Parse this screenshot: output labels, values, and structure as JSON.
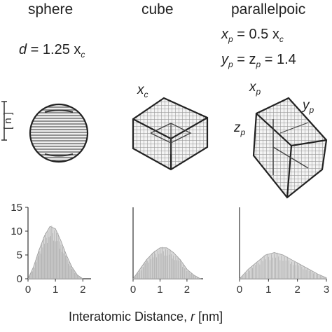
{
  "columns": [
    {
      "title": "sphere",
      "shape": "sphere"
    },
    {
      "title": "cube",
      "shape": "cube"
    },
    {
      "title": "parallelpoic",
      "shape": "parallelepiped"
    }
  ],
  "sphere_eq": {
    "var": "d",
    "rest": " = 1.25 x",
    "sub": "c"
  },
  "para_eq1": {
    "var": "x",
    "var_sub": "p",
    "rest": " = 0.5 x",
    "sub": "c"
  },
  "para_eq2": {
    "y": "y",
    "y_sub": "p",
    "eq": " = z",
    "z_sub": "p",
    "rest": " = 1.4"
  },
  "cube_label": {
    "var": "x",
    "sub": "c"
  },
  "para_labels": {
    "x": {
      "var": "x",
      "sub": "p"
    },
    "y": {
      "var": "y",
      "sub": "p"
    },
    "z": {
      "var": "z",
      "sub": "p"
    }
  },
  "scale_bar_label": "[ n ]",
  "chart_data": [
    {
      "type": "area",
      "title": "sphere",
      "xlabel": "Interatomic Distance, r [nm]",
      "ylabel": "",
      "xlim": [
        0,
        2.3
      ],
      "ylim": [
        0,
        15
      ],
      "xticks": [
        0,
        1,
        2
      ],
      "yticks": [
        0,
        5,
        10,
        15
      ],
      "x": [
        0,
        0.2,
        0.4,
        0.6,
        0.8,
        1.0,
        1.2,
        1.4,
        1.6,
        1.8,
        2.0
      ],
      "y": [
        0,
        2.5,
        6,
        9,
        11,
        10.5,
        8,
        5,
        2.5,
        0.8,
        0
      ]
    },
    {
      "type": "area",
      "title": "cube",
      "xlabel": "Interatomic Distance, r [nm]",
      "ylabel": "",
      "xlim": [
        0,
        2.6
      ],
      "ylim": [
        0,
        15
      ],
      "xticks": [
        0,
        1,
        2
      ],
      "yticks": [],
      "x": [
        0,
        0.25,
        0.5,
        0.75,
        1.0,
        1.25,
        1.5,
        1.75,
        2.0,
        2.25,
        2.5
      ],
      "y": [
        0,
        2,
        4,
        5.5,
        6.5,
        6.5,
        5.5,
        4,
        2,
        0.8,
        0
      ]
    },
    {
      "type": "area",
      "title": "parallelpoic",
      "xlabel": "Interatomic Distance, r [nm]",
      "ylabel": "",
      "xlim": [
        0,
        3
      ],
      "ylim": [
        0,
        15
      ],
      "xticks": [
        0,
        1,
        2,
        3
      ],
      "yticks": [],
      "x": [
        0,
        0.3,
        0.6,
        0.9,
        1.2,
        1.5,
        1.8,
        2.1,
        2.4,
        2.7,
        3.0
      ],
      "y": [
        0,
        2,
        3.5,
        5,
        5.5,
        5,
        4,
        3,
        2,
        1,
        0.2
      ]
    }
  ],
  "x_axis_title": {
    "text": "Interatomic Distance, ",
    "var": "r",
    "unit": "  [nm]"
  }
}
